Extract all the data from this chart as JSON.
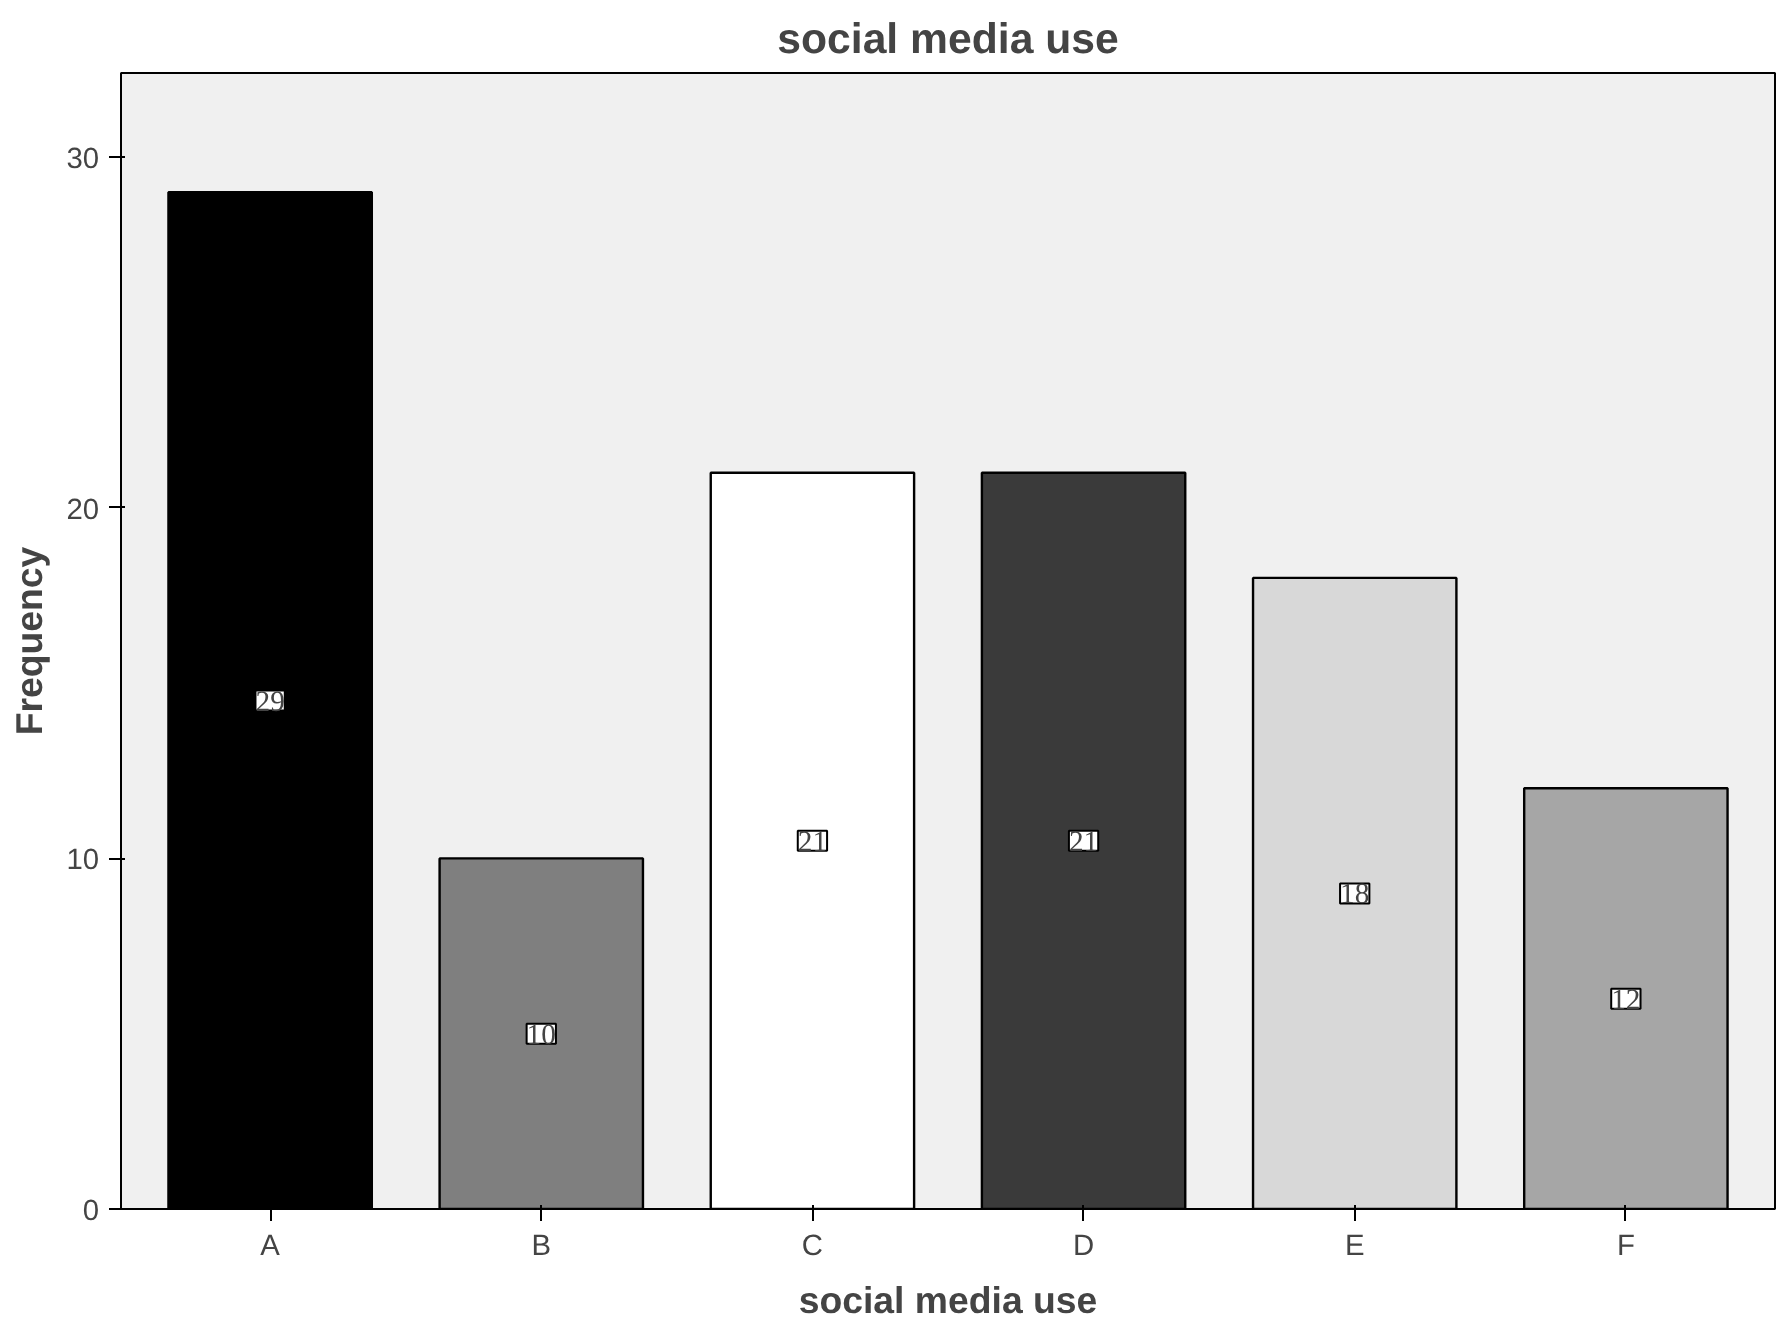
{
  "chart_data": {
    "type": "bar",
    "title": "social media use",
    "xlabel": "social media use",
    "ylabel": "Frequency",
    "categories": [
      "A",
      "B",
      "C",
      "D",
      "E",
      "F"
    ],
    "values": [
      29,
      10,
      21,
      21,
      18,
      12
    ],
    "colors": [
      "#000000",
      "#7f7f7f",
      "#ffffff",
      "#3a3a3a",
      "#d8d8d8",
      "#a6a6a6"
    ],
    "ylim": [
      0,
      32.4
    ],
    "yticks": [
      0,
      10,
      20,
      30
    ],
    "grid": false,
    "data_labels": true
  }
}
